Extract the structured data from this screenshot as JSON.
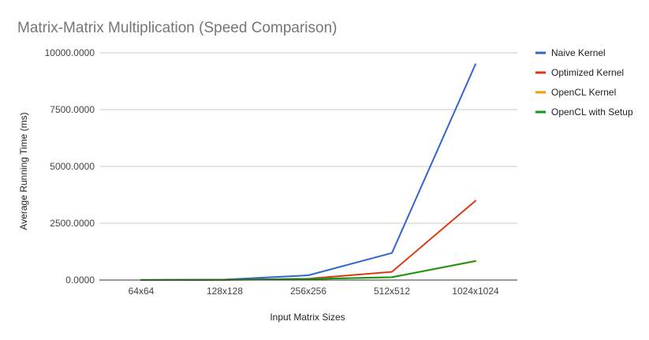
{
  "chart_data": {
    "type": "line",
    "title": "Matrix-Matrix Multiplication (Speed Comparison)",
    "xlabel": "Input Matrix Sizes",
    "ylabel": "Average Running Time (ms)",
    "categories": [
      "64x64",
      "128x128",
      "256x256",
      "512x512",
      "1024x1024"
    ],
    "ylim": [
      0,
      10000
    ],
    "yticks": [
      "0.0000",
      "2500.0000",
      "5000.0000",
      "7500.0000",
      "10000.0000"
    ],
    "ytick_values": [
      0,
      2500,
      5000,
      7500,
      10000
    ],
    "grid": true,
    "legend_position": "right",
    "series": [
      {
        "name": "Naive Kernel",
        "color": "#3366cc",
        "values": [
          2,
          20,
          210,
          1190,
          9500
        ]
      },
      {
        "name": "Optimized Kernel",
        "color": "#dc3912",
        "values": [
          1,
          8,
          60,
          360,
          3490
        ]
      },
      {
        "name": "OpenCL Kernel",
        "color": "#ff9900",
        "values": [
          1,
          5,
          40,
          120,
          830
        ]
      },
      {
        "name": "OpenCL with Setup",
        "color": "#109618",
        "values": [
          2,
          6,
          45,
          125,
          840
        ]
      }
    ]
  }
}
